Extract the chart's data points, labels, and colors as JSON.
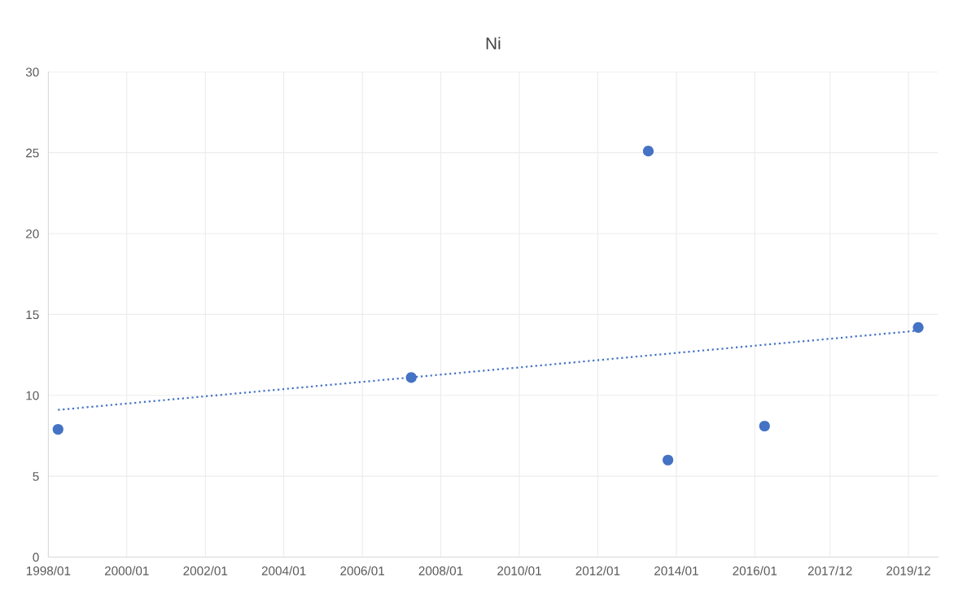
{
  "chart_data": {
    "type": "scatter",
    "title": "Ni",
    "series": [
      {
        "color": "#4472c4",
        "marker": "circle",
        "x": [
          "1998-04-01",
          "2007-04-01",
          "2013-04-15",
          "2013-10-15",
          "2016-04-01",
          "2020-03-01"
        ],
        "values": [
          7.9,
          11.1,
          25.1,
          6.0,
          8.1,
          14.2
        ]
      },
      {
        "type": "line",
        "color": "#4472c4",
        "line_style": "dotted",
        "marker": "none",
        "x": [
          "1998-04-01",
          "2020-03-01"
        ],
        "values": [
          9.1,
          14.0
        ]
      }
    ],
    "xlim": [
      "1998-01-01",
      "2020-09-01"
    ],
    "xticks": [
      {
        "value": "1998-01-01",
        "label": "1998/01"
      },
      {
        "value": "2000-01-01",
        "label": "2000/01"
      },
      {
        "value": "2002-01-01",
        "label": "2002/01"
      },
      {
        "value": "2004-01-01",
        "label": "2004/01"
      },
      {
        "value": "2006-01-01",
        "label": "2006/01"
      },
      {
        "value": "2008-01-01",
        "label": "2008/01"
      },
      {
        "value": "2010-01-01",
        "label": "2010/01"
      },
      {
        "value": "2012-01-01",
        "label": "2012/01"
      },
      {
        "value": "2014-01-01",
        "label": "2014/01"
      },
      {
        "value": "2016-01-01",
        "label": "2016/01"
      },
      {
        "value": "2017-12-01",
        "label": "2017/12"
      },
      {
        "value": "2019-12-01",
        "label": "2019/12"
      }
    ],
    "ylim": [
      0,
      30
    ],
    "yticks": [
      0,
      5,
      10,
      15,
      20,
      25,
      30
    ],
    "grid": true
  }
}
